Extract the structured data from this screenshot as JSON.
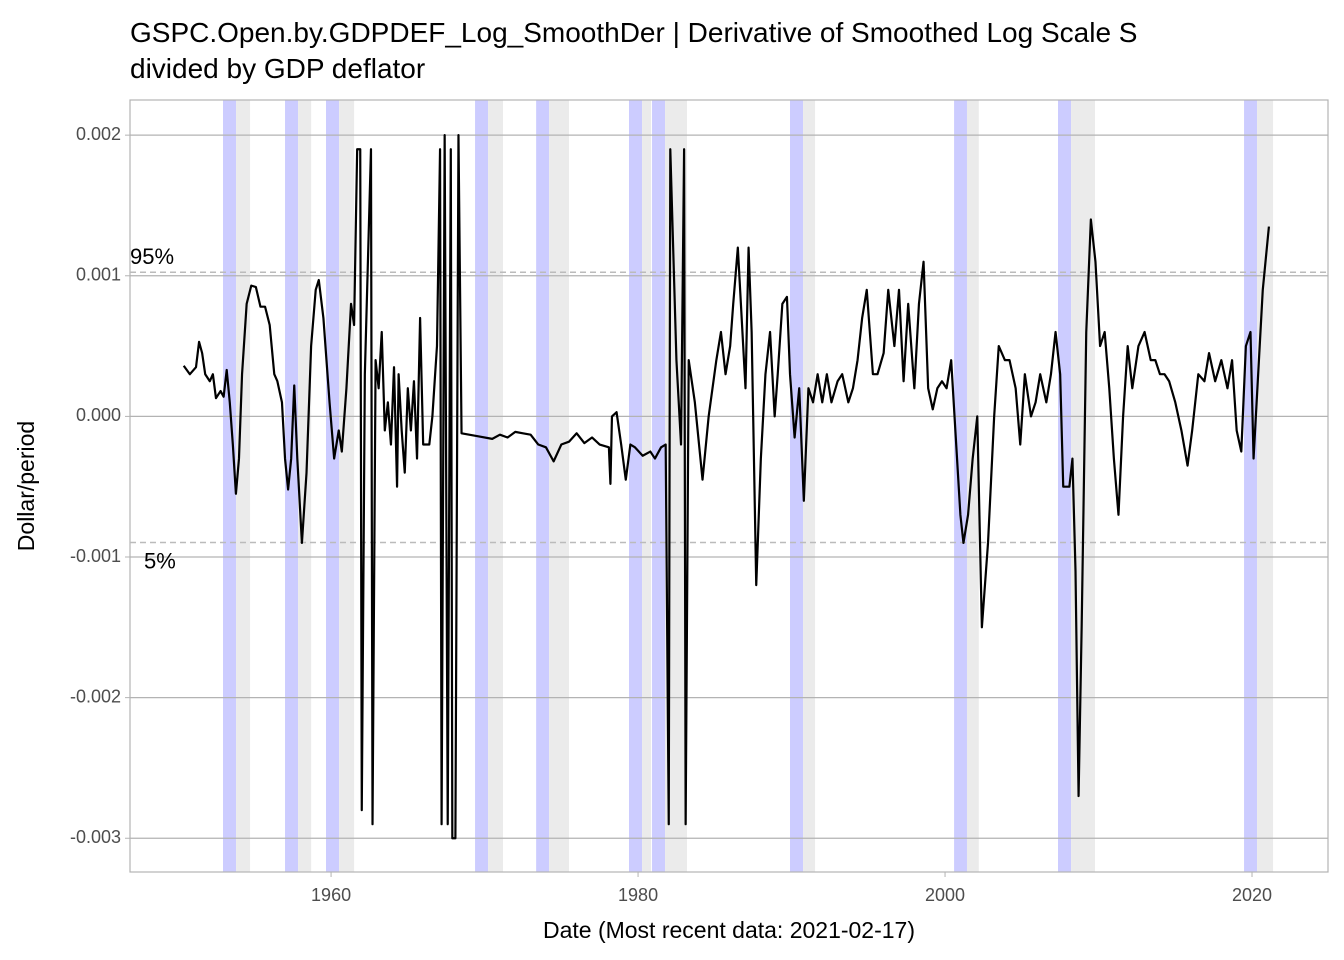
{
  "chart_data": {
    "type": "line",
    "title": [
      "GSPC.Open.by.GDPDEF_Log_SmoothDer | Derivative of Smoothed Log Scale S",
      "divided by GDP deflator"
    ],
    "x_label": "Date (Most recent data: 2021-02-17)",
    "y_label": "Dollar/period",
    "xlim": [
      1946.9,
      2024.95
    ],
    "ylim": [
      -0.00324,
      0.00225
    ],
    "xticks": [
      1960,
      1980,
      2000,
      2020
    ],
    "yticks": [
      0.002,
      0.001,
      {
        "value": 0,
        "label": "0.000"
      },
      -0.001,
      -0.002,
      -0.003
    ],
    "grid": true,
    "color": "#000000",
    "bands": [
      {
        "color": "#ccccff",
        "spans": [
          [
            1952.96,
            1953.81
          ],
          [
            1957.0,
            1957.85
          ],
          [
            1959.67,
            1960.52
          ],
          [
            1969.38,
            1970.23
          ],
          [
            1973.36,
            1974.2
          ],
          [
            1979.41,
            1980.26
          ],
          [
            1980.91,
            1981.76
          ],
          [
            1989.9,
            1990.75
          ],
          [
            2000.59,
            2001.43
          ],
          [
            2007.36,
            2008.21
          ],
          [
            2019.48,
            2020.33
          ]
        ]
      },
      {
        "color": "#ebebeb",
        "spans": [
          [
            1953.81,
            1954.72
          ],
          [
            1957.85,
            1958.7
          ],
          [
            1960.52,
            1961.5
          ],
          [
            1970.23,
            1971.2
          ],
          [
            1974.2,
            1975.5
          ],
          [
            1980.26,
            1980.85
          ],
          [
            1981.76,
            1983.19
          ],
          [
            1990.75,
            1991.53
          ],
          [
            2001.43,
            2002.2
          ],
          [
            2008.21,
            2009.77
          ],
          [
            2020.33,
            2021.37
          ]
        ]
      }
    ],
    "reference_lines": [
      {
        "value": 0.001025,
        "label": "95%"
      },
      {
        "value": -0.000897,
        "label": "5%"
      }
    ],
    "x": [
      1950.4,
      1950.8,
      1951.2,
      1951.4,
      1951.6,
      1951.8,
      1952.1,
      1952.3,
      1952.5,
      1952.8,
      1953.0,
      1953.2,
      1953.4,
      1953.6,
      1953.8,
      1954.0,
      1954.2,
      1954.5,
      1954.8,
      1955.1,
      1955.4,
      1955.7,
      1956.0,
      1956.3,
      1956.5,
      1956.8,
      1957.0,
      1957.2,
      1957.4,
      1957.6,
      1957.8,
      1958.1,
      1958.4,
      1958.7,
      1959.0,
      1959.2,
      1959.5,
      1959.9,
      1960.2,
      1960.5,
      1960.7,
      1961.0,
      1961.3,
      1961.5,
      1961.7,
      1961.9,
      1962.0,
      1962.2,
      1962.6,
      1962.7,
      1962.9,
      1963.1,
      1963.3,
      1963.5,
      1963.7,
      1963.9,
      1964.1,
      1964.3,
      1964.4,
      1964.6,
      1964.8,
      1965.0,
      1965.2,
      1965.4,
      1965.6,
      1965.8,
      1966.0,
      1966.4,
      1966.6,
      1966.9,
      1967.1,
      1967.2,
      1967.4,
      1967.6,
      1967.8,
      1967.9,
      1968.1,
      1968.3,
      1968.5,
      1969.5,
      1970.5,
      1971.0,
      1971.5,
      1972.0,
      1972.5,
      1973.0,
      1973.5,
      1974.0,
      1974.5,
      1975.0,
      1975.5,
      1976.0,
      1976.5,
      1977.0,
      1977.5,
      1978.1,
      1978.2,
      1978.3,
      1978.6,
      1978.9,
      1979.2,
      1979.5,
      1979.8,
      1980.3,
      1980.8,
      1981.1,
      1981.5,
      1981.8,
      1982.0,
      1982.1,
      1982.5,
      1982.8,
      1983.0,
      1983.1,
      1983.3,
      1983.7,
      1984.2,
      1984.6,
      1985.1,
      1985.4,
      1985.7,
      1986.0,
      1986.2,
      1986.5,
      1986.7,
      1987.0,
      1987.2,
      1987.4,
      1987.7,
      1988.0,
      1988.3,
      1988.6,
      1988.9,
      1989.1,
      1989.4,
      1989.7,
      1989.9,
      1990.2,
      1990.5,
      1990.8,
      1991.1,
      1991.4,
      1991.7,
      1992.0,
      1992.3,
      1992.6,
      1993.0,
      1993.3,
      1993.7,
      1994.0,
      1994.3,
      1994.6,
      1994.9,
      1995.3,
      1995.6,
      1996.0,
      1996.3,
      1996.7,
      1997.0,
      1997.3,
      1997.6,
      1998.0,
      1998.3,
      1998.6,
      1998.9,
      1999.2,
      1999.5,
      1999.8,
      2000.1,
      2000.4,
      2000.7,
      2001.0,
      2001.2,
      2001.5,
      2001.8,
      2002.1,
      2002.4,
      2002.8,
      2003.2,
      2003.5,
      2003.9,
      2004.2,
      2004.6,
      2004.9,
      2005.2,
      2005.6,
      2005.9,
      2006.2,
      2006.6,
      2006.9,
      2007.2,
      2007.5,
      2007.7,
      2008.1,
      2008.3,
      2008.5,
      2008.7,
      2008.9,
      2009.2,
      2009.5,
      2009.8,
      2010.1,
      2010.4,
      2010.7,
      2011.0,
      2011.3,
      2011.6,
      2011.9,
      2012.2,
      2012.6,
      2013.0,
      2013.4,
      2013.7,
      2014.0,
      2014.3,
      2014.6,
      2015.0,
      2015.4,
      2015.8,
      2016.1,
      2016.5,
      2016.9,
      2017.2,
      2017.6,
      2018.0,
      2018.4,
      2018.7,
      2019.0,
      2019.3,
      2019.6,
      2019.9,
      2020.1,
      2020.4,
      2020.7,
      2021.1
    ],
    "values": [
      0.00036,
      0.0003,
      0.00035,
      0.00053,
      0.00045,
      0.0003,
      0.00025,
      0.0003,
      0.00013,
      0.00018,
      0.00014,
      0.00033,
      0.0001,
      -0.0002,
      -0.00055,
      -0.0003,
      0.0003,
      0.0008,
      0.00093,
      0.00092,
      0.00078,
      0.00078,
      0.00065,
      0.0003,
      0.00025,
      0.0001,
      -0.0003,
      -0.00052,
      -0.0003,
      0.00022,
      -0.0003,
      -0.0009,
      -0.0004,
      0.0005,
      0.0009,
      0.00097,
      0.0007,
      0.0001,
      -0.0003,
      -0.0001,
      -0.00025,
      0.0002,
      0.0008,
      0.00065,
      0.0019,
      0.0019,
      -0.0028,
      0.0003,
      0.0019,
      -0.0029,
      0.0004,
      0.0002,
      0.0006,
      -0.0001,
      0.0001,
      -0.0002,
      0.00035,
      -0.0005,
      0.0003,
      -0.0001,
      -0.0004,
      0.0002,
      -0.0001,
      0.00025,
      -0.0003,
      0.0007,
      -0.0002,
      -0.0002,
      0.0,
      0.0005,
      0.0019,
      -0.0029,
      0.002,
      -0.0029,
      0.0019,
      -0.003,
      -0.003,
      0.002,
      -0.00012,
      -0.00014,
      -0.00016,
      -0.00013,
      -0.00015,
      -0.00011,
      -0.00012,
      -0.00013,
      -0.0002,
      -0.00022,
      -0.00032,
      -0.0002,
      -0.00018,
      -0.00012,
      -0.00019,
      -0.00015,
      -0.0002,
      -0.00022,
      -0.00048,
      0.0,
      3e-05,
      -0.0002,
      -0.00045,
      -0.0002,
      -0.00022,
      -0.00028,
      -0.00025,
      -0.0003,
      -0.00022,
      -0.0002,
      -0.0029,
      0.0019,
      0.0004,
      -0.0002,
      0.0019,
      -0.0029,
      0.0004,
      0.0001,
      -0.00045,
      0.0,
      0.0004,
      0.0006,
      0.0003,
      0.0005,
      0.0008,
      0.0012,
      0.0008,
      0.0002,
      0.0012,
      0.0006,
      -0.0012,
      -0.0003,
      0.0003,
      0.0006,
      0.0,
      0.0003,
      0.0008,
      0.00085,
      0.0003,
      -0.00015,
      0.0002,
      -0.0006,
      0.0002,
      0.0001,
      0.0003,
      0.0001,
      0.0003,
      0.0001,
      0.00025,
      0.0003,
      0.0001,
      0.0002,
      0.0004,
      0.0007,
      0.0009,
      0.0003,
      0.0003,
      0.00045,
      0.0009,
      0.0005,
      0.0009,
      0.00025,
      0.0008,
      0.0002,
      0.0008,
      0.0011,
      0.0002,
      5e-05,
      0.0002,
      0.00025,
      0.0002,
      0.0004,
      -0.00015,
      -0.0007,
      -0.0009,
      -0.0007,
      -0.0003,
      0.0,
      -0.0015,
      -0.0009,
      0.0,
      0.0005,
      0.0004,
      0.0004,
      0.0002,
      -0.0002,
      0.0003,
      0.0,
      0.0001,
      0.0003,
      0.0001,
      0.0003,
      0.0006,
      0.0003,
      -0.0005,
      -0.0005,
      -0.0003,
      -0.0011,
      -0.0027,
      -0.0015,
      0.0006,
      0.0014,
      0.0011,
      0.0005,
      0.0006,
      0.0002,
      -0.0003,
      -0.0007,
      0.0,
      0.0005,
      0.0002,
      0.0005,
      0.0006,
      0.0004,
      0.0004,
      0.0003,
      0.0003,
      0.00025,
      0.0001,
      -0.0001,
      -0.00035,
      -0.0001,
      0.0003,
      0.00025,
      0.00045,
      0.00025,
      0.0004,
      0.0002,
      0.0004,
      -0.0001,
      -0.00025,
      0.0005,
      0.0006,
      -0.0003,
      0.0003,
      0.0009,
      0.00135
    ]
  }
}
